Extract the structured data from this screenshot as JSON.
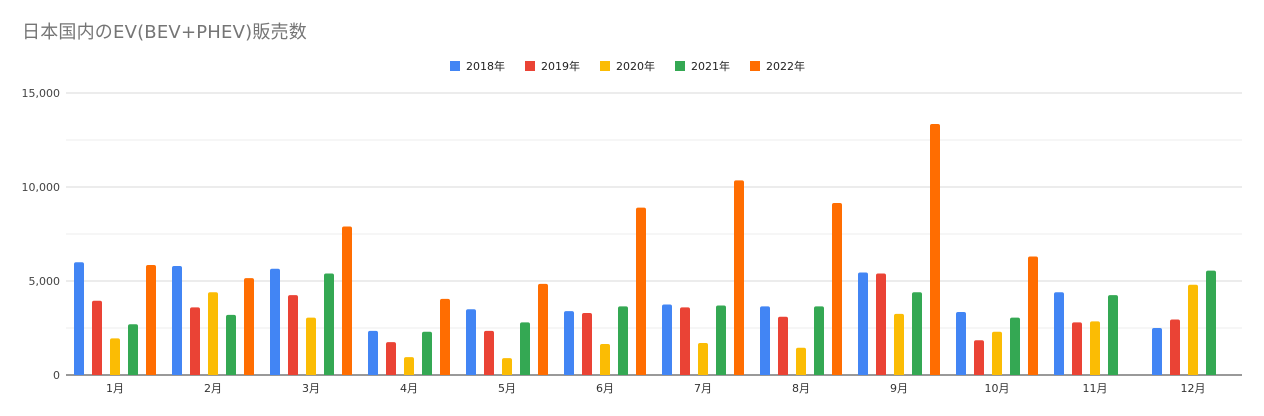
{
  "chart_data": {
    "type": "bar",
    "title": "日本国内のEV(BEV+PHEV)販売数",
    "categories": [
      "1月",
      "2月",
      "3月",
      "4月",
      "5月",
      "6月",
      "7月",
      "8月",
      "9月",
      "10月",
      "11月",
      "12月"
    ],
    "ylim": [
      0,
      15000
    ],
    "yticks": [
      0,
      5000,
      10000,
      15000
    ],
    "ytick_labels": [
      "0",
      "5,000",
      "10,000",
      "15,000"
    ],
    "grid": true,
    "legend_position": "top-center",
    "series": [
      {
        "name": "2018年",
        "color": "#4285F4",
        "values": [
          6000,
          5800,
          5650,
          2350,
          3500,
          3400,
          3750,
          3650,
          5450,
          3350,
          4400,
          2500
        ]
      },
      {
        "name": "2019年",
        "color": "#EA4335",
        "values": [
          3950,
          3600,
          4250,
          1750,
          2350,
          3300,
          3600,
          3100,
          5400,
          1850,
          2800,
          2950
        ]
      },
      {
        "name": "2020年",
        "color": "#FBBC04",
        "values": [
          1950,
          4400,
          3050,
          950,
          900,
          1650,
          1700,
          1450,
          3250,
          2300,
          2850,
          4800
        ]
      },
      {
        "name": "2021年",
        "color": "#34A853",
        "values": [
          2700,
          3200,
          5400,
          2300,
          2800,
          3650,
          3700,
          3650,
          4400,
          3050,
          4250,
          5550
        ]
      },
      {
        "name": "2022年",
        "color": "#FF6D01",
        "values": [
          5850,
          5150,
          7900,
          4050,
          4850,
          8900,
          10350,
          9150,
          13350,
          6300,
          null,
          null
        ]
      }
    ]
  }
}
